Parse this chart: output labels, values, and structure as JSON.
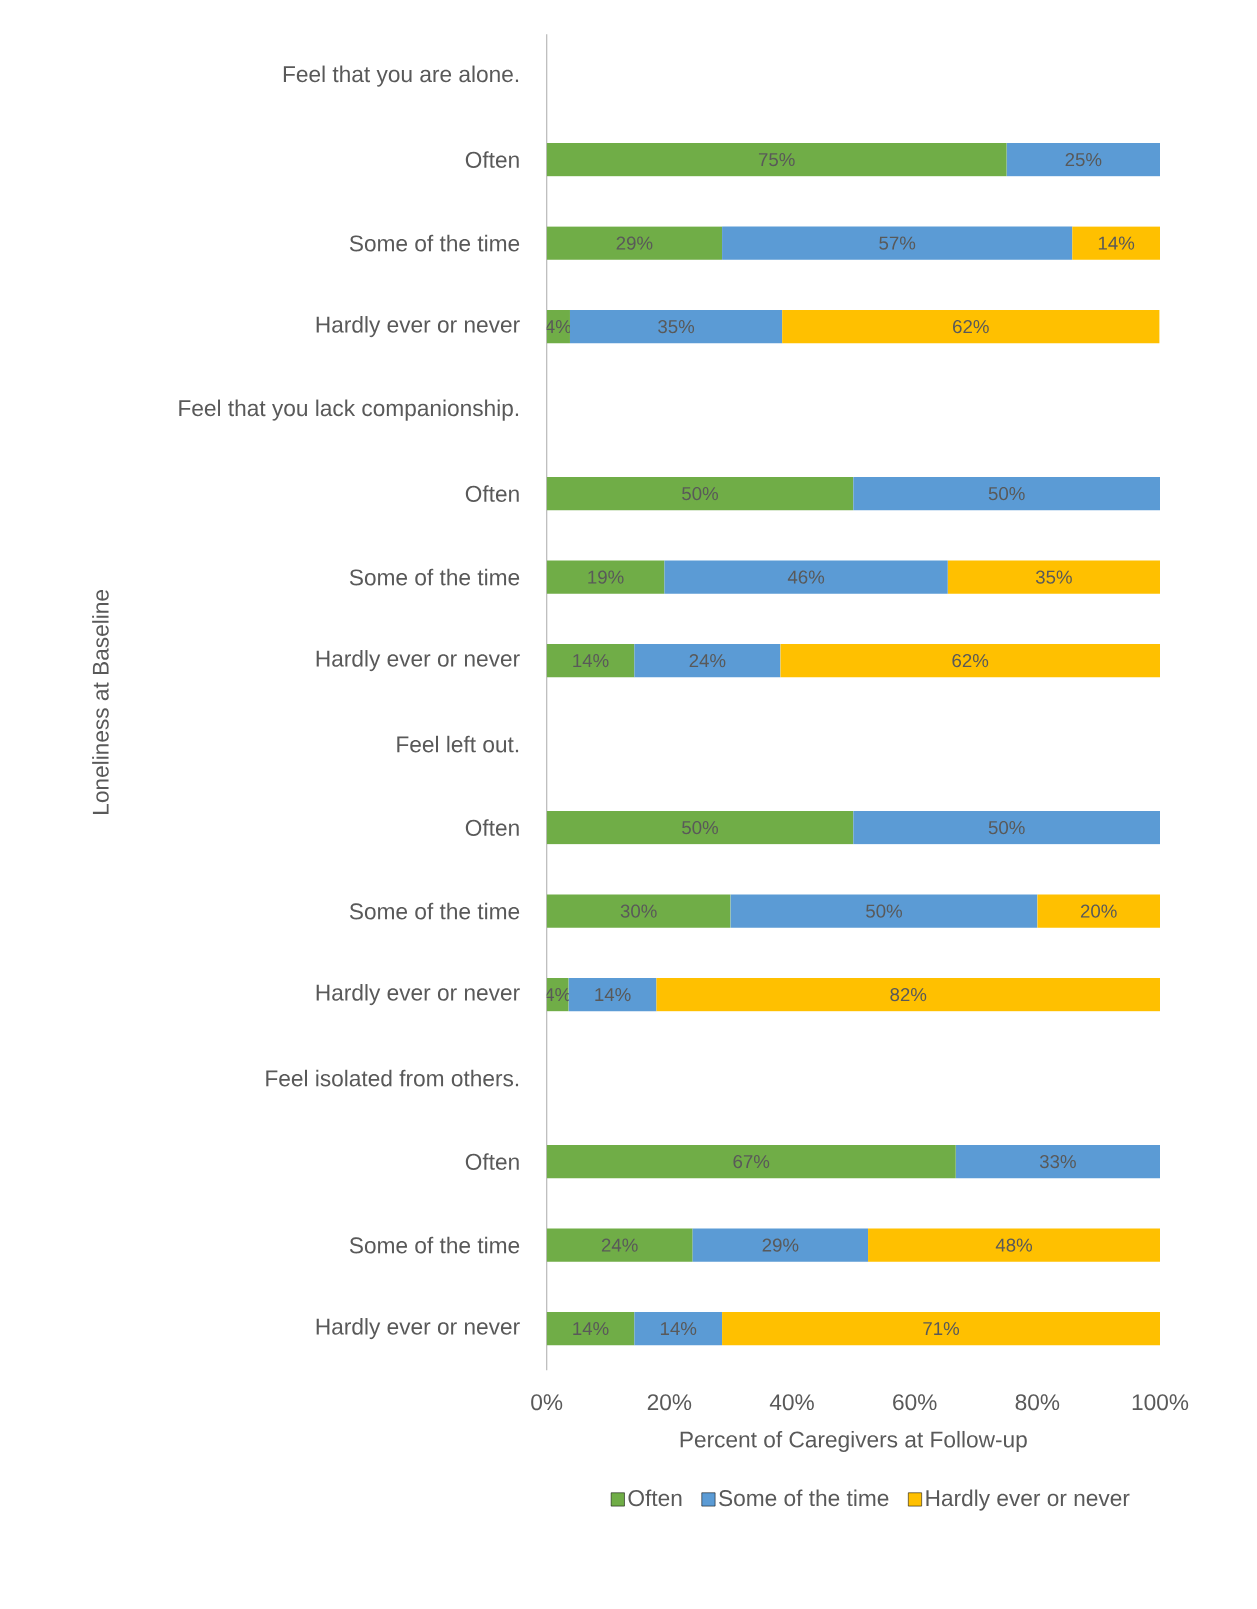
{
  "chart_data": {
    "type": "bar",
    "orientation": "horizontal",
    "stacked": true,
    "categories": [
      "Feel that you are alone.",
      "Often",
      "Some of the time",
      "Hardly ever or never",
      "Feel that you lack companionship.",
      "Often",
      "Some of the time",
      "Hardly ever or never",
      "Feel left out.",
      "Often",
      "Some of the time",
      "Hardly ever or never",
      "Feel isolated from others.",
      "Often",
      "Some of the time",
      "Hardly ever or never"
    ],
    "series": [
      {
        "name": "Often",
        "color": "#70ad47",
        "values": [
          null,
          75,
          28.6,
          3.8,
          null,
          50,
          19.2,
          14.3,
          null,
          50,
          30,
          3.6,
          null,
          66.7,
          23.8,
          14.3
        ],
        "value_labels": [
          null,
          "75%",
          "29%",
          "4%",
          null,
          "50%",
          "19%",
          "14%",
          null,
          "50%",
          "30%",
          "4%",
          null,
          "67%",
          "24%",
          "14%"
        ]
      },
      {
        "name": "Some of the time",
        "color": "#5b9bd5",
        "values": [
          null,
          25,
          57.1,
          34.6,
          null,
          50,
          46.2,
          23.8,
          null,
          50,
          50,
          14.3,
          null,
          33.3,
          28.6,
          14.3
        ],
        "value_labels": [
          null,
          "25%",
          "57%",
          "35%",
          null,
          "50%",
          "46%",
          "24%",
          null,
          "50%",
          "50%",
          "14%",
          null,
          "33%",
          "29%",
          "14%"
        ]
      },
      {
        "name": "Hardly ever or never",
        "color": "#ffc000",
        "values": [
          null,
          null,
          14.3,
          61.5,
          null,
          null,
          34.6,
          61.9,
          null,
          null,
          20,
          82.1,
          null,
          null,
          47.6,
          71.4
        ],
        "value_labels": [
          null,
          null,
          "14%",
          "62%",
          null,
          null,
          "35%",
          "62%",
          null,
          null,
          "20%",
          "82%",
          null,
          null,
          "48%",
          "71%"
        ]
      }
    ],
    "xlim": [
      0,
      100
    ],
    "xticks": [
      {
        "value": 0,
        "label": "0%"
      },
      {
        "value": 20,
        "label": "20%"
      },
      {
        "value": 40,
        "label": "40%"
      },
      {
        "value": 60,
        "label": "60%"
      },
      {
        "value": 80,
        "label": "80%"
      },
      {
        "value": 100,
        "label": "100%"
      }
    ],
    "xlabel": "Percent of Caregivers at Follow-up",
    "ylabel": "Loneliness at Baseline",
    "legend": "bottom"
  }
}
